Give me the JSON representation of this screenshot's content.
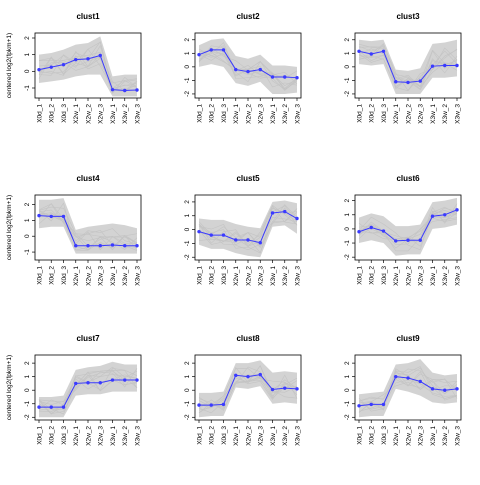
{
  "figure": {
    "background": "#ffffff",
    "grid": false,
    "legend": "none",
    "band_color": "#d3d3d3",
    "line_color": "#3a3aff"
  },
  "chart_data": [
    {
      "type": "line",
      "title": "clust1",
      "ylabel": "centered log2(fpkm+1)",
      "categories": [
        "X0d_1",
        "X0d_2",
        "X0d_3",
        "X2w_1",
        "X2w_2",
        "X2w_3",
        "X3w_1",
        "X3w_2",
        "X3w_3"
      ],
      "yticks": [
        -1,
        0,
        1,
        2
      ],
      "ylim": [
        -1.6,
        2.3
      ],
      "values": [
        0.1,
        0.25,
        0.4,
        0.7,
        0.75,
        0.95,
        -1.1,
        -1.15,
        -1.12
      ],
      "band_min": [
        -0.7,
        -0.6,
        -0.5,
        -0.3,
        -0.2,
        -0.2,
        -1.5,
        -1.5,
        -1.5
      ],
      "band_max": [
        1.0,
        1.1,
        1.3,
        1.6,
        1.7,
        2.1,
        -0.3,
        -0.2,
        -0.2
      ]
    },
    {
      "type": "line",
      "title": "clust2",
      "ylabel": "",
      "categories": [
        "X0d_1",
        "X0d_2",
        "X0d_3",
        "X2w_1",
        "X2w_2",
        "X2w_3",
        "X3w_1",
        "X3w_2",
        "X3w_3"
      ],
      "yticks": [
        -2,
        -1,
        0,
        1,
        2
      ],
      "ylim": [
        -2.3,
        2.5
      ],
      "values": [
        0.9,
        1.25,
        1.25,
        -0.2,
        -0.35,
        -0.2,
        -0.75,
        -0.75,
        -0.8
      ],
      "band_min": [
        0.0,
        0.2,
        0.0,
        -1.2,
        -1.4,
        -1.1,
        -2.0,
        -2.0,
        -1.9
      ],
      "band_max": [
        1.6,
        2.0,
        2.1,
        0.8,
        0.6,
        0.9,
        0.1,
        0.1,
        0.0
      ]
    },
    {
      "type": "line",
      "title": "clust3",
      "ylabel": "",
      "categories": [
        "X0d_1",
        "X0d_2",
        "X0d_3",
        "X2w_1",
        "X2w_2",
        "X2w_3",
        "X3w_1",
        "X3w_2",
        "X3w_3"
      ],
      "yticks": [
        -2,
        -1,
        0,
        1,
        2
      ],
      "ylim": [
        -2.3,
        2.5
      ],
      "values": [
        1.15,
        0.95,
        1.15,
        -1.1,
        -1.15,
        -1.05,
        0.05,
        0.1,
        0.1
      ],
      "band_min": [
        0.2,
        0.1,
        0.2,
        -2.0,
        -2.0,
        -2.0,
        -0.8,
        -0.8,
        -0.7
      ],
      "band_max": [
        2.0,
        1.9,
        2.0,
        -0.2,
        -0.3,
        -0.1,
        1.7,
        1.8,
        2.0
      ]
    },
    {
      "type": "line",
      "title": "clust4",
      "ylabel": "centered log2(fpkm+1)",
      "categories": [
        "X0d_1",
        "X0d_2",
        "X0d_3",
        "X2w_1",
        "X2w_2",
        "X2w_3",
        "X3w_1",
        "X3w_2",
        "X3w_3"
      ],
      "yticks": [
        -1,
        0,
        1,
        2
      ],
      "ylim": [
        -1.5,
        2.6
      ],
      "values": [
        1.3,
        1.25,
        1.25,
        -0.6,
        -0.6,
        -0.6,
        -0.55,
        -0.6,
        -0.6
      ],
      "band_min": [
        0.5,
        0.6,
        0.6,
        -1.1,
        -1.1,
        -1.1,
        -1.1,
        -1.1,
        -1.1
      ],
      "band_max": [
        2.3,
        2.3,
        2.4,
        0.4,
        0.6,
        0.7,
        0.8,
        0.7,
        0.5
      ]
    },
    {
      "type": "line",
      "title": "clust5",
      "ylabel": "",
      "categories": [
        "X0d_1",
        "X0d_2",
        "X0d_3",
        "X2w_1",
        "X2w_2",
        "X2w_3",
        "X3w_1",
        "X3w_2",
        "X3w_3"
      ],
      "yticks": [
        -2,
        -1,
        0,
        1,
        2
      ],
      "ylim": [
        -2.2,
        2.5
      ],
      "values": [
        -0.15,
        -0.4,
        -0.4,
        -0.75,
        -0.75,
        -0.95,
        1.2,
        1.3,
        0.8
      ],
      "band_min": [
        -1.1,
        -1.4,
        -1.4,
        -1.7,
        -1.9,
        -2.0,
        0.2,
        0.3,
        -0.3
      ],
      "band_max": [
        0.8,
        0.7,
        0.7,
        0.4,
        0.2,
        0.1,
        2.0,
        2.1,
        1.9
      ]
    },
    {
      "type": "line",
      "title": "clust6",
      "ylabel": "",
      "categories": [
        "X0d_1",
        "X0d_2",
        "X0d_3",
        "X2w_1",
        "X2w_2",
        "X2w_3",
        "X3w_1",
        "X3w_2",
        "X3w_3"
      ],
      "yticks": [
        -2,
        -1,
        0,
        1,
        2
      ],
      "ylim": [
        -2.2,
        2.4
      ],
      "values": [
        -0.2,
        0.1,
        -0.15,
        -0.85,
        -0.8,
        -0.8,
        0.9,
        1.0,
        1.35
      ],
      "band_min": [
        -1.0,
        -0.8,
        -1.0,
        -1.9,
        -1.8,
        -1.8,
        0.0,
        0.1,
        0.3
      ],
      "band_max": [
        0.8,
        1.1,
        0.9,
        0.2,
        0.2,
        0.3,
        1.9,
        2.0,
        2.2
      ]
    },
    {
      "type": "line",
      "title": "clust7",
      "ylabel": "centered log2(fpkm+1)",
      "categories": [
        "X0d_1",
        "X0d_2",
        "X0d_3",
        "X2w_1",
        "X2w_2",
        "X2w_3",
        "X3w_1",
        "X3w_2",
        "X3w_3"
      ],
      "yticks": [
        -2,
        -1,
        0,
        1,
        2
      ],
      "ylim": [
        -2.2,
        2.6
      ],
      "values": [
        -1.25,
        -1.25,
        -1.25,
        0.5,
        0.55,
        0.55,
        0.75,
        0.75,
        0.75
      ],
      "band_min": [
        -2.0,
        -2.0,
        -2.0,
        -0.4,
        -0.3,
        -0.3,
        -0.1,
        -0.1,
        -0.1
      ],
      "band_max": [
        -0.5,
        -0.5,
        -0.4,
        1.5,
        1.7,
        1.8,
        2.1,
        1.9,
        1.9
      ]
    },
    {
      "type": "line",
      "title": "clust8",
      "ylabel": "",
      "categories": [
        "X0d_1",
        "X0d_2",
        "X0d_3",
        "X2w_1",
        "X2w_2",
        "X2w_3",
        "X3w_1",
        "X3w_2",
        "X3w_3"
      ],
      "yticks": [
        -2,
        -1,
        0,
        1,
        2
      ],
      "ylim": [
        -2.2,
        2.6
      ],
      "values": [
        -1.1,
        -1.1,
        -1.05,
        1.1,
        1.0,
        1.15,
        0.05,
        0.15,
        0.1
      ],
      "band_min": [
        -2.0,
        -1.9,
        -1.9,
        0.2,
        0.1,
        0.3,
        -1.0,
        -0.9,
        -1.0
      ],
      "band_max": [
        -0.2,
        -0.2,
        -0.1,
        2.0,
        2.0,
        2.2,
        1.3,
        1.4,
        1.3
      ]
    },
    {
      "type": "line",
      "title": "clust9",
      "ylabel": "",
      "categories": [
        "X0d_1",
        "X0d_2",
        "X0d_3",
        "X2w_1",
        "X2w_2",
        "X2w_3",
        "X3w_1",
        "X3w_2",
        "X3w_3"
      ],
      "yticks": [
        -2,
        -1,
        0,
        1,
        2
      ],
      "ylim": [
        -2.2,
        2.6
      ],
      "values": [
        -1.15,
        -1.05,
        -1.05,
        1.0,
        0.9,
        0.65,
        0.1,
        0.0,
        0.1
      ],
      "band_min": [
        -2.0,
        -1.9,
        -1.9,
        0.1,
        -0.1,
        -0.4,
        -0.9,
        -1.0,
        -0.9
      ],
      "band_max": [
        -0.3,
        -0.2,
        -0.1,
        1.9,
        2.0,
        2.3,
        1.3,
        1.1,
        1.2
      ]
    }
  ]
}
